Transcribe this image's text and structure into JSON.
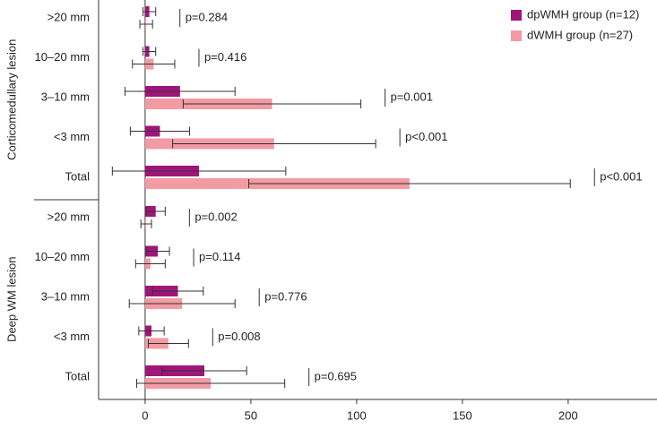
{
  "chart_data": {
    "type": "bar",
    "orientation": "horizontal",
    "groups": [
      {
        "name": "Corticomedullary lesion",
        "categories": [
          ">20 mm",
          "10–20 mm",
          "3–10 mm",
          "<3 mm",
          "Total"
        ],
        "annotations": [
          "p=0.284",
          "p=0.416",
          "p=0.001",
          "p<0.001",
          "p<0.001"
        ]
      },
      {
        "name": "Deep WM lesion",
        "categories": [
          ">20 mm",
          "10–20 mm",
          "3–10 mm",
          "<3 mm",
          "Total"
        ],
        "annotations": [
          "p=0.002",
          "p=0.114",
          "p=0.776",
          "p=0.008",
          "p=0.695"
        ]
      }
    ],
    "series": [
      {
        "name": "dpWMH group (n=12)",
        "color": "#a0157a",
        "values": [
          2,
          2,
          16.5,
          7,
          25.5,
          5,
          6,
          15.5,
          3,
          28
        ],
        "errors": [
          3,
          3,
          26,
          14,
          41,
          4.5,
          5.5,
          12,
          6,
          20
        ]
      },
      {
        "name": "dWMH group (n=27)",
        "color": "#f29ba3",
        "values": [
          0.5,
          4,
          60,
          61,
          125,
          0.5,
          2.5,
          17.5,
          11,
          31
        ],
        "errors": [
          3,
          10,
          42,
          48,
          76,
          2.5,
          7,
          25,
          9.5,
          35
        ]
      }
    ],
    "xlim": [
      -22,
      242
    ],
    "xticks": [
      0,
      50,
      100,
      150,
      200
    ]
  }
}
